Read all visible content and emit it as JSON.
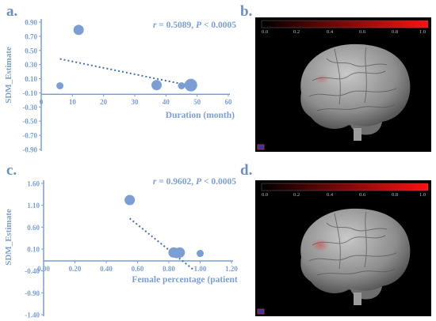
{
  "panels": {
    "a": "a.",
    "b": "b.",
    "c": "c.",
    "d": "d."
  },
  "chart_data": [
    {
      "type": "scatter",
      "panel": "a",
      "annotation": "r = 0.5089, P < 0.0005",
      "annotation_r": "r",
      "annotation_r_value": " = 0.5089, ",
      "annotation_p": "P",
      "annotation_p_value": " < 0.0005",
      "xlabel": "Duration (month)",
      "ylabel": "SDM_Estimate",
      "xlim": [
        0,
        60
      ],
      "ylim": [
        -0.9,
        0.9
      ],
      "x_ticks": [
        "0",
        "10",
        "20",
        "30",
        "40",
        "50",
        "60"
      ],
      "x_tick_values": [
        0,
        10,
        20,
        30,
        40,
        50,
        60
      ],
      "y_ticks": [
        "0.90",
        "0.70",
        "0.50",
        "0.30",
        "0.10",
        "-0.10",
        "-0.30",
        "-0.50",
        "-0.70",
        "-0.90"
      ],
      "y_tick_values": [
        0.9,
        0.7,
        0.5,
        0.3,
        0.1,
        -0.1,
        -0.3,
        -0.5,
        -0.7,
        -0.9
      ],
      "points": [
        {
          "x": 6,
          "y": 0.0,
          "size": "small"
        },
        {
          "x": 12,
          "y": 0.79,
          "size": "medium"
        },
        {
          "x": 37,
          "y": 0.01,
          "size": "medium"
        },
        {
          "x": 45,
          "y": 0.0,
          "size": "small"
        },
        {
          "x": 48,
          "y": 0.01,
          "size": "large"
        }
      ],
      "trend": [
        {
          "x": 6,
          "y": 0.38
        },
        {
          "x": 48,
          "y": 0.0
        }
      ],
      "color": "#7b9fd4"
    },
    {
      "type": "scatter",
      "panel": "c",
      "annotation": "r = 0.9602, P < 0.0005",
      "annotation_r": "r",
      "annotation_r_value": " = 0.9602, ",
      "annotation_p": "P",
      "annotation_p_value": " < 0.0005",
      "xlabel": "Female percentage (patients)",
      "ylabel": "SDM_Estimate",
      "xlim": [
        0,
        1.2
      ],
      "ylim": [
        -1.4,
        1.6
      ],
      "x_ticks": [
        "0.00",
        "0.20",
        "0.40",
        "0.60",
        "0.80",
        "1.00",
        "1.20"
      ],
      "x_tick_values": [
        0,
        0.2,
        0.4,
        0.6,
        0.8,
        1.0,
        1.2
      ],
      "y_ticks": [
        "1.60",
        "1.10",
        "0.60",
        "0.10",
        "-0.40",
        "-0.90",
        "-1.40"
      ],
      "y_tick_values": [
        1.6,
        1.1,
        0.6,
        0.1,
        -0.4,
        -0.9,
        -1.4
      ],
      "points": [
        {
          "x": 0.55,
          "y": 1.22,
          "size": "medium"
        },
        {
          "x": 0.83,
          "y": 0.02,
          "size": "medium"
        },
        {
          "x": 0.85,
          "y": 0.01,
          "size": "medium"
        },
        {
          "x": 0.87,
          "y": 0.02,
          "size": "medium"
        },
        {
          "x": 1.0,
          "y": 0.0,
          "size": "small"
        }
      ],
      "trend": [
        {
          "x": 0.55,
          "y": 0.8
        },
        {
          "x": 0.96,
          "y": -0.38
        }
      ],
      "color": "#7b9fd4"
    }
  ],
  "brain_panels": [
    {
      "panel": "b",
      "colorbar_ticks": [
        "0.0",
        "0.2",
        "0.4",
        "0.6",
        "0.8",
        "1.0"
      ],
      "colorbar_end": "#ff1010",
      "highlight_intensity": 0.35
    },
    {
      "panel": "d",
      "colorbar_ticks": [
        "0.0",
        "0.2",
        "0.4",
        "0.6",
        "0.8",
        "1.0"
      ],
      "colorbar_end": "#ff1010",
      "highlight_intensity": 0.55
    }
  ]
}
